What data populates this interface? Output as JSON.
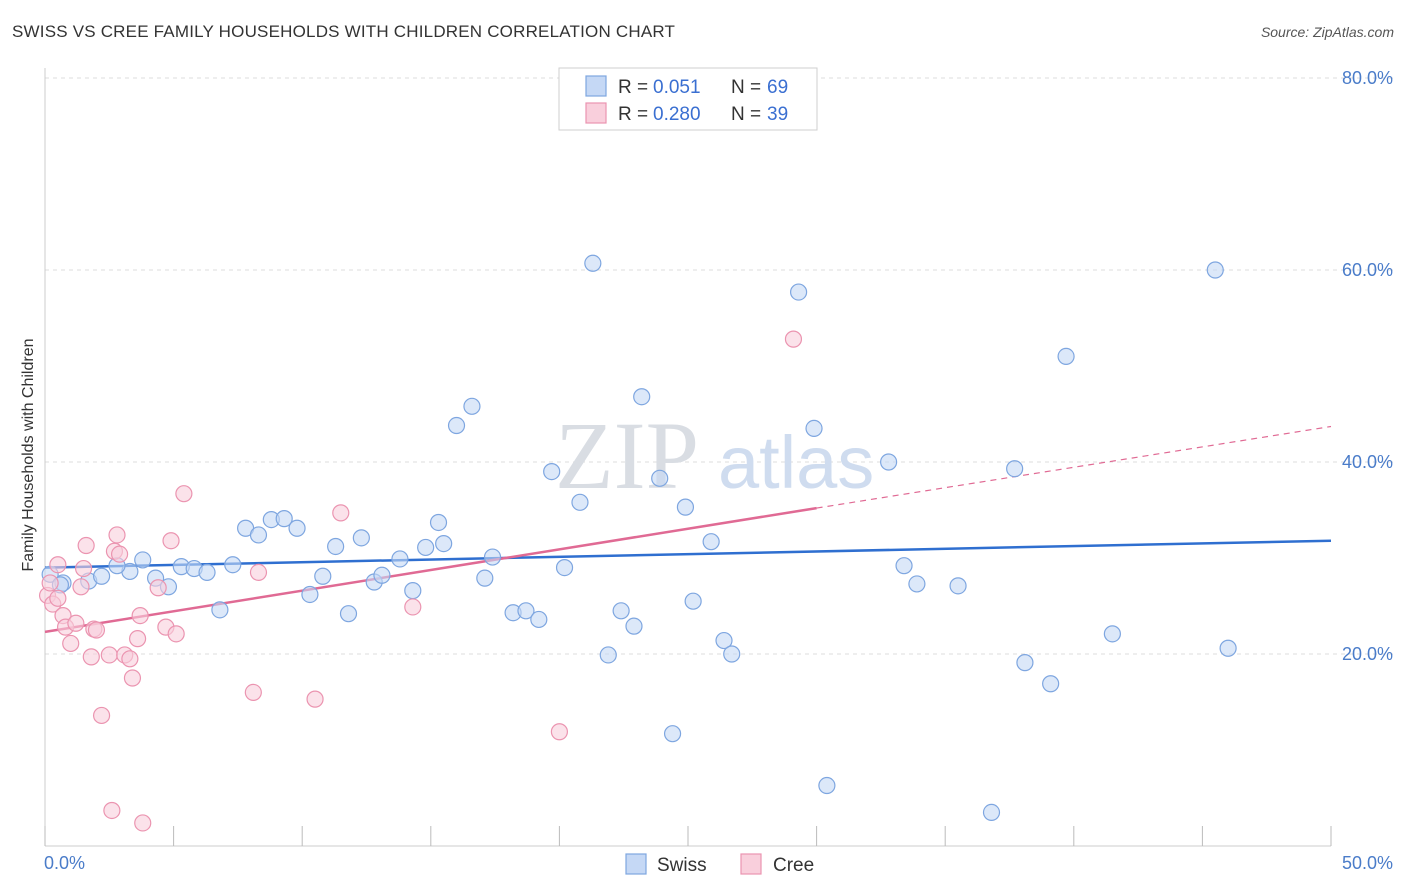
{
  "title": "SWISS VS CREE FAMILY HOUSEHOLDS WITH CHILDREN CORRELATION CHART",
  "source": "Source: ZipAtlas.com",
  "watermark": {
    "zip": "ZIP",
    "atlas": "atlas"
  },
  "colors": {
    "swiss_fill": "#c5d8f5",
    "swiss_stroke": "#7ea6e0",
    "swiss_line": "#2f6fd0",
    "cree_fill": "#f9cfdc",
    "cree_stroke": "#eb94b0",
    "cree_line": "#e06a94",
    "grid": "#dcdcdc",
    "tick_text": "#4a7cc9"
  },
  "legend_top": [
    {
      "r_label": "R =",
      "r_value": "0.051",
      "n_label": "N =",
      "n_value": "69"
    },
    {
      "r_label": "R =",
      "r_value": "0.280",
      "n_label": "N =",
      "n_value": "39"
    }
  ],
  "chart_data": {
    "type": "scatter",
    "xlabel": "",
    "ylabel": "Family Households with Children",
    "xlim": [
      0,
      50
    ],
    "ylim": [
      0,
      80
    ],
    "x_tick_labels": [
      "0.0%",
      "50.0%"
    ],
    "y_ticks": [
      20,
      40,
      60,
      80
    ],
    "y_tick_labels": [
      "20.0%",
      "40.0%",
      "60.0%",
      "80.0%"
    ],
    "legend_position": "bottom-center",
    "series": [
      {
        "name": "Swiss",
        "trend": {
          "x0": 0,
          "y0": 29.0,
          "x1": 50,
          "y1": 31.8
        },
        "points": [
          [
            0.2,
            28.3
          ],
          [
            0.7,
            27.4
          ],
          [
            1.7,
            27.6
          ],
          [
            2.2,
            28.1
          ],
          [
            3.3,
            28.6
          ],
          [
            2.8,
            29.2
          ],
          [
            3.8,
            29.8
          ],
          [
            4.3,
            27.9
          ],
          [
            4.8,
            27.0
          ],
          [
            5.3,
            29.1
          ],
          [
            5.8,
            28.9
          ],
          [
            6.3,
            28.5
          ],
          [
            6.8,
            24.6
          ],
          [
            7.3,
            29.3
          ],
          [
            7.8,
            33.1
          ],
          [
            8.3,
            32.4
          ],
          [
            8.8,
            34.0
          ],
          [
            9.3,
            34.1
          ],
          [
            9.8,
            33.1
          ],
          [
            10.3,
            26.2
          ],
          [
            10.8,
            28.1
          ],
          [
            11.3,
            31.2
          ],
          [
            11.8,
            24.2
          ],
          [
            12.3,
            32.1
          ],
          [
            12.8,
            27.5
          ],
          [
            13.1,
            28.2
          ],
          [
            13.8,
            29.9
          ],
          [
            14.3,
            26.6
          ],
          [
            14.8,
            31.1
          ],
          [
            15.3,
            33.7
          ],
          [
            15.5,
            31.5
          ],
          [
            16.0,
            43.8
          ],
          [
            16.6,
            45.8
          ],
          [
            17.1,
            27.9
          ],
          [
            17.4,
            30.1
          ],
          [
            18.2,
            24.3
          ],
          [
            18.7,
            24.5
          ],
          [
            19.2,
            23.6
          ],
          [
            19.7,
            39.0
          ],
          [
            20.2,
            29.0
          ],
          [
            20.8,
            35.8
          ],
          [
            21.3,
            60.7
          ],
          [
            21.9,
            19.9
          ],
          [
            22.4,
            24.5
          ],
          [
            22.9,
            22.9
          ],
          [
            23.2,
            46.8
          ],
          [
            23.9,
            38.3
          ],
          [
            24.4,
            11.7
          ],
          [
            24.9,
            35.3
          ],
          [
            25.2,
            25.5
          ],
          [
            25.9,
            31.7
          ],
          [
            26.4,
            21.4
          ],
          [
            26.7,
            20.0
          ],
          [
            29.3,
            57.7
          ],
          [
            29.9,
            43.5
          ],
          [
            30.4,
            6.3
          ],
          [
            32.8,
            40.0
          ],
          [
            33.4,
            29.2
          ],
          [
            33.9,
            27.3
          ],
          [
            35.5,
            27.1
          ],
          [
            36.8,
            3.5
          ],
          [
            37.7,
            39.3
          ],
          [
            38.1,
            19.1
          ],
          [
            39.7,
            51.0
          ],
          [
            39.1,
            16.9
          ],
          [
            41.5,
            22.1
          ],
          [
            45.5,
            60.0
          ],
          [
            46.0,
            20.6
          ],
          [
            0.6,
            27.2
          ]
        ]
      },
      {
        "name": "Cree",
        "trend": {
          "x0": 0,
          "y0": 22.3,
          "x1": 30,
          "y1": 35.2
        },
        "trend_dashed": {
          "x0": 30,
          "y0": 35.2,
          "x1": 50,
          "y1": 43.7
        },
        "points": [
          [
            0.1,
            26.1
          ],
          [
            0.2,
            27.4
          ],
          [
            0.3,
            25.2
          ],
          [
            0.5,
            25.8
          ],
          [
            0.5,
            29.3
          ],
          [
            0.7,
            24.0
          ],
          [
            0.8,
            22.8
          ],
          [
            1.0,
            21.1
          ],
          [
            1.2,
            23.2
          ],
          [
            1.4,
            27.0
          ],
          [
            1.5,
            28.9
          ],
          [
            1.6,
            31.3
          ],
          [
            1.8,
            19.7
          ],
          [
            1.9,
            22.6
          ],
          [
            2.0,
            22.5
          ],
          [
            2.2,
            13.6
          ],
          [
            2.5,
            19.9
          ],
          [
            2.6,
            3.7
          ],
          [
            2.7,
            30.7
          ],
          [
            2.8,
            32.4
          ],
          [
            2.9,
            30.4
          ],
          [
            3.1,
            19.9
          ],
          [
            3.3,
            19.5
          ],
          [
            3.4,
            17.5
          ],
          [
            3.6,
            21.6
          ],
          [
            3.7,
            24.0
          ],
          [
            3.8,
            2.4
          ],
          [
            4.4,
            26.9
          ],
          [
            4.7,
            22.8
          ],
          [
            4.9,
            31.8
          ],
          [
            5.1,
            22.1
          ],
          [
            5.4,
            36.7
          ],
          [
            8.1,
            16.0
          ],
          [
            8.3,
            28.5
          ],
          [
            10.5,
            15.3
          ],
          [
            11.5,
            34.7
          ],
          [
            14.3,
            24.9
          ],
          [
            20.0,
            11.9
          ],
          [
            29.1,
            52.8
          ]
        ]
      }
    ]
  }
}
